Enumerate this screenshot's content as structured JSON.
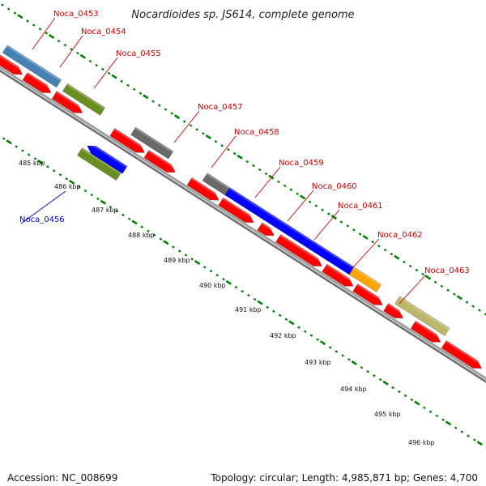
{
  "title": "Nocardioides sp. JS614, complete genome",
  "footer": {
    "accession": "Accession: NC_008699",
    "topology": "Topology: circular; Length: 4,985,871 bp; Genes: 4,700"
  },
  "colors": {
    "cds_red": "#ff0000",
    "blue": "#0000ff",
    "steel_blue": "#4682b4",
    "olive_green": "#6b8e23",
    "dark_gray": "#696969",
    "orange": "#ffa500",
    "khaki": "#bdb76b",
    "backbone": "#808080",
    "ticks": "#008000",
    "label_forward": "#cc0000",
    "label_reverse": "#0000cc"
  },
  "scale": {
    "unit": "kbp",
    "labels": [
      "485 kbp",
      "486 kbp",
      "487 kbp",
      "488 kbp",
      "489 kbp",
      "490 kbp",
      "491 kbp",
      "492 kbp",
      "493 kbp",
      "494 kbp",
      "495 kbp",
      "496 kbp"
    ]
  },
  "genes": [
    {
      "label": "Noca_0453",
      "strand": "forward"
    },
    {
      "label": "Noca_0454",
      "strand": "forward"
    },
    {
      "label": "Noca_0455",
      "strand": "forward"
    },
    {
      "label": "Noca_0456",
      "strand": "reverse"
    },
    {
      "label": "Noca_0457",
      "strand": "forward"
    },
    {
      "label": "Noca_0458",
      "strand": "forward"
    },
    {
      "label": "Noca_0459",
      "strand": "forward"
    },
    {
      "label": "Noca_0460",
      "strand": "forward"
    },
    {
      "label": "Noca_0461",
      "strand": "forward"
    },
    {
      "label": "Noca_0462",
      "strand": "forward"
    },
    {
      "label": "Noca_0463",
      "strand": "forward"
    }
  ]
}
